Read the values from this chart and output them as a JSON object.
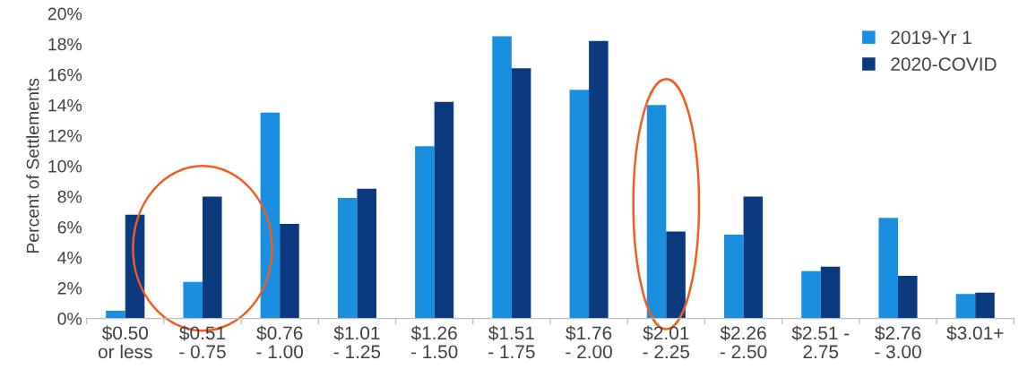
{
  "chart_data": {
    "type": "bar",
    "ylabel": "Percent of Settlements",
    "categories": [
      "$0.50\nor less",
      "$0.51\n- 0.75",
      "$0.76\n- 1.00",
      "$1.01\n- 1.25",
      "$1.26\n- 1.50",
      "$1.51\n- 1.75",
      "$1.76\n- 2.00",
      "$2.01\n- 2.25",
      "$2.26\n- 2.50",
      "$2.51 -\n2.75",
      "$2.76\n- 3.00",
      "$3.01+"
    ],
    "series": [
      {
        "name": "2019-Yr 1",
        "color": "#1a8fe0",
        "values": [
          0.5,
          2.4,
          13.5,
          7.9,
          11.3,
          18.5,
          15.0,
          14.0,
          5.5,
          3.1,
          6.6,
          1.6
        ]
      },
      {
        "name": "2020-COVID",
        "color": "#0b3a7e",
        "values": [
          6.8,
          8.0,
          6.2,
          8.5,
          14.2,
          16.4,
          18.2,
          5.7,
          8.0,
          3.4,
          2.8,
          1.7
        ]
      }
    ],
    "ylim": [
      0,
      20
    ],
    "yticks": [
      {
        "value": 0,
        "label": "0%"
      },
      {
        "value": 2,
        "label": "2%"
      },
      {
        "value": 4,
        "label": "4%"
      },
      {
        "value": 6,
        "label": "6%"
      },
      {
        "value": 8,
        "label": "8%"
      },
      {
        "value": 10,
        "label": "10%"
      },
      {
        "value": 12,
        "label": "12%"
      },
      {
        "value": 14,
        "label": "14%"
      },
      {
        "value": 16,
        "label": "16%"
      },
      {
        "value": 18,
        "label": "18%"
      },
      {
        "value": 20,
        "label": "20%"
      }
    ],
    "grid": false,
    "legend": "top right"
  }
}
